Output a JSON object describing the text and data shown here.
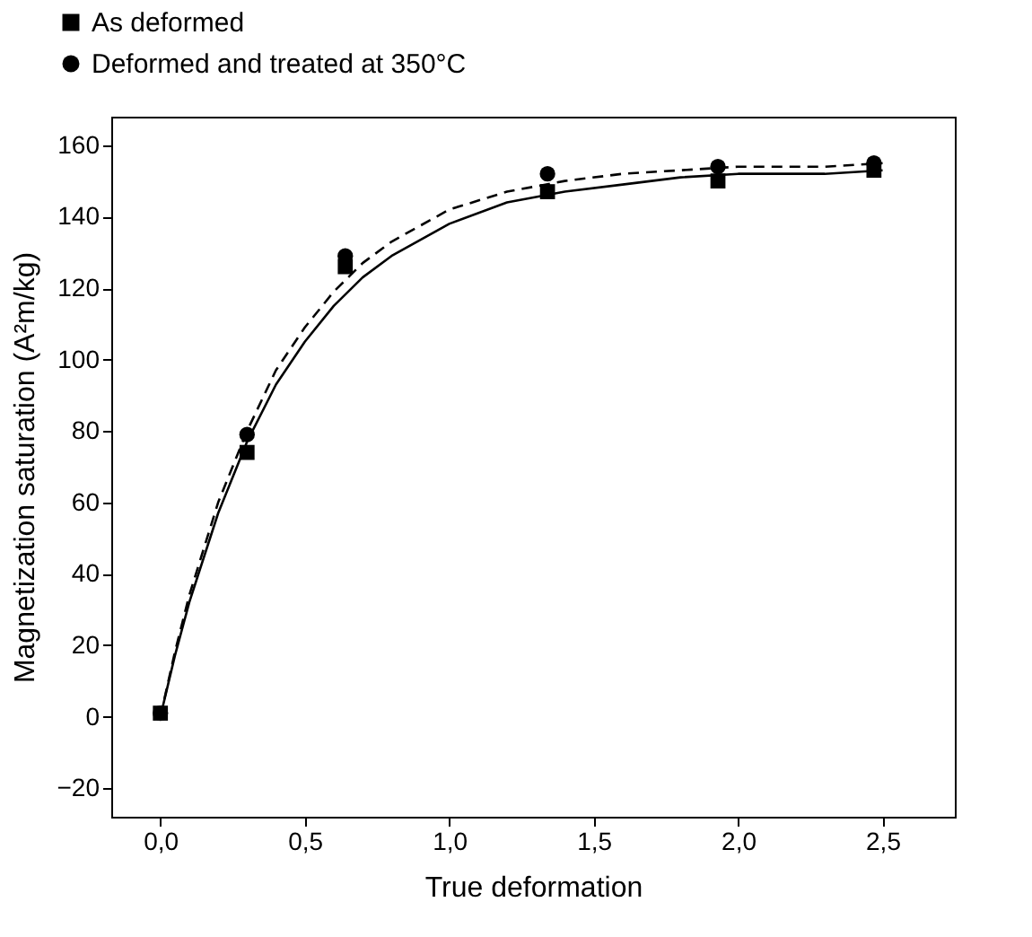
{
  "chart_data": {
    "type": "scatter",
    "xlabel": "True deformation",
    "ylabel": "Magnetization saturation (A²m/kg)",
    "xlim": [
      -0.17,
      2.75
    ],
    "ylim": [
      -28,
      168
    ],
    "xticks": [
      {
        "value": 0,
        "label": "0,0"
      },
      {
        "value": 0.5,
        "label": "0,5"
      },
      {
        "value": 1,
        "label": "1,0"
      },
      {
        "value": 1.5,
        "label": "1,5"
      },
      {
        "value": 2,
        "label": "2,0"
      },
      {
        "value": 2.5,
        "label": "2,5"
      }
    ],
    "yticks": [
      -20,
      0,
      20,
      40,
      60,
      80,
      100,
      120,
      140,
      160
    ],
    "grid": false,
    "legend": "top left",
    "series": [
      {
        "name": "As deformed",
        "marker": "square",
        "color": "#000000",
        "x": [
          0,
          0.3,
          0.64,
          1.34,
          1.93,
          2.47
        ],
        "values": [
          1,
          74,
          126,
          147,
          150,
          153
        ]
      },
      {
        "name": "Deformed and treated at 350°C",
        "marker": "circle",
        "color": "#000000",
        "x": [
          0,
          0.3,
          0.64,
          1.34,
          1.93,
          2.47
        ],
        "values": [
          1,
          79,
          129,
          152,
          154,
          155
        ]
      },
      {
        "type": "line",
        "line_style": "solid",
        "color": "#000000",
        "x": [
          0,
          0.05,
          0.1,
          0.2,
          0.3,
          0.4,
          0.5,
          0.6,
          0.7,
          0.8,
          1.0,
          1.2,
          1.4,
          1.6,
          1.8,
          2.0,
          2.3,
          2.5
        ],
        "values": [
          0,
          17,
          32,
          57,
          77,
          93,
          105,
          115,
          123,
          129,
          138,
          144,
          147,
          149,
          151,
          152,
          152,
          153
        ]
      },
      {
        "type": "line",
        "line_style": "dashed",
        "color": "#000000",
        "x": [
          0,
          0.05,
          0.1,
          0.2,
          0.3,
          0.4,
          0.5,
          0.6,
          0.7,
          0.8,
          1.0,
          1.2,
          1.4,
          1.6,
          1.8,
          2.0,
          2.3,
          2.5
        ],
        "values": [
          0,
          18,
          34,
          60,
          80,
          97,
          109,
          119,
          127,
          133,
          142,
          147,
          150,
          152,
          153,
          154,
          154,
          155
        ]
      }
    ]
  }
}
